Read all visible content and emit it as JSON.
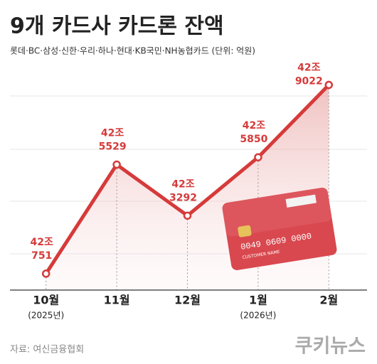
{
  "chart_data": {
    "type": "line",
    "title": "9개 카드사 카드론 잔액",
    "subtitle": "롯데·BC·삼성·신한·우리·하나·현대·KB국민·NH농협카드 (단위: 억원)",
    "categories": [
      "10월",
      "11월",
      "12월",
      "1월",
      "2월"
    ],
    "category_sublabels": [
      "(2025년)",
      null,
      null,
      "(2026년)",
      null
    ],
    "series": [
      {
        "name": "카드론 잔액",
        "color": "#d63a3a",
        "values": [
          420751,
          425529,
          423292,
          425850,
          429022
        ],
        "value_labels": [
          [
            "42조",
            "751"
          ],
          [
            "42조",
            "5529"
          ],
          [
            "42조",
            "3292"
          ],
          [
            "42조",
            "5850"
          ],
          [
            "42조",
            "9022"
          ]
        ]
      }
    ],
    "ylim": [
      420000,
      430000
    ],
    "source": "자료: 여신금융협회",
    "logo": "쿠키뉴스",
    "illustration": {
      "card_number": "0049 0609 0000",
      "card_name": "CUSTOMER NAME"
    }
  }
}
